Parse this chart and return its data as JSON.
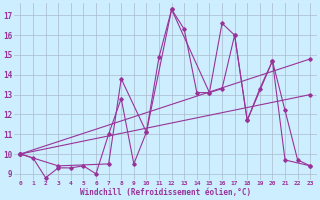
{
  "title": "",
  "xlabel": "Windchill (Refroidissement éolien,°C)",
  "ylabel": "",
  "bg_color": "#cceeff",
  "grid_color": "#aabbcc",
  "line_color": "#993399",
  "xlim": [
    -0.5,
    23.5
  ],
  "ylim": [
    8.7,
    17.6
  ],
  "xticks": [
    0,
    1,
    2,
    3,
    4,
    5,
    6,
    7,
    8,
    9,
    10,
    11,
    12,
    13,
    14,
    15,
    16,
    17,
    18,
    19,
    20,
    21,
    22,
    23
  ],
  "yticks": [
    9,
    10,
    11,
    12,
    13,
    14,
    15,
    16,
    17
  ],
  "lines": [
    {
      "x": [
        0,
        1,
        2,
        3,
        4,
        5,
        6,
        7,
        8,
        9,
        10,
        11,
        12,
        13,
        14,
        15,
        16,
        17,
        18,
        19,
        20,
        21,
        22,
        23
      ],
      "y": [
        10.0,
        9.8,
        8.8,
        9.3,
        9.3,
        9.4,
        9.0,
        11.0,
        12.8,
        9.5,
        11.1,
        14.9,
        17.3,
        16.3,
        13.1,
        13.1,
        16.6,
        16.0,
        11.7,
        13.3,
        14.7,
        12.2,
        9.7,
        9.4
      ]
    },
    {
      "x": [
        0,
        3,
        7,
        8,
        10,
        12,
        15,
        16,
        17,
        18,
        20,
        21,
        23
      ],
      "y": [
        10.0,
        9.4,
        9.5,
        13.8,
        11.1,
        17.3,
        13.1,
        13.3,
        16.0,
        11.7,
        14.7,
        9.7,
        9.4
      ]
    },
    {
      "x": [
        0,
        23
      ],
      "y": [
        10.0,
        13.0
      ]
    },
    {
      "x": [
        0,
        23
      ],
      "y": [
        10.0,
        14.8
      ]
    }
  ]
}
